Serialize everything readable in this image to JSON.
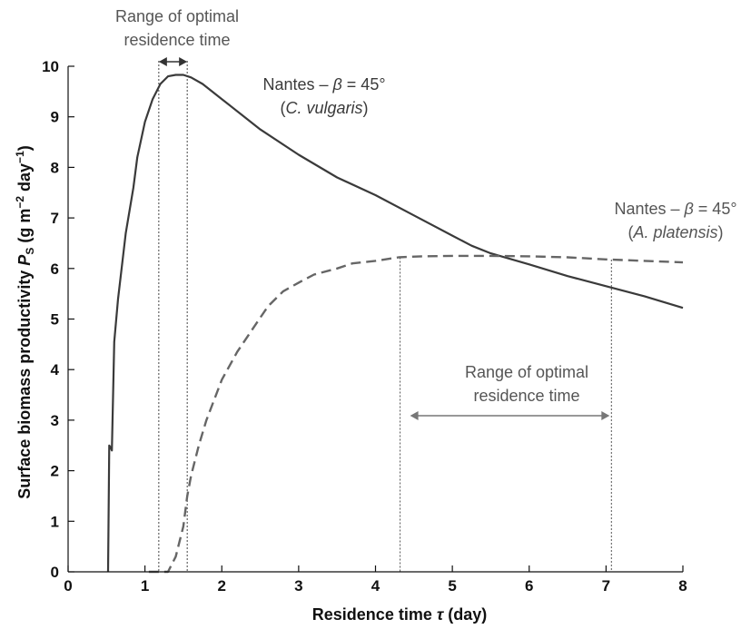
{
  "chart_data": {
    "type": "line",
    "xlabel_text": "Residence time ",
    "xlabel_symbol": "τ",
    "xlabel_unit": " (day)",
    "ylabel_text": "Surface biomass productivity ",
    "ylabel_symbol": "P",
    "ylabel_sub": "S",
    "ylabel_unit_a": " (g m",
    "ylabel_exp1": "−2",
    "ylabel_unit_b": " day",
    "ylabel_exp2": "−1",
    "ylabel_unit_c": ")",
    "xlim": [
      0,
      8
    ],
    "ylim": [
      0,
      10
    ],
    "x_ticks": [
      "0",
      "1",
      "2",
      "3",
      "4",
      "5",
      "6",
      "7",
      "8"
    ],
    "y_ticks": [
      "0",
      "1",
      "2",
      "3",
      "4",
      "5",
      "6",
      "7",
      "8",
      "9",
      "10"
    ],
    "grid": false,
    "series": [
      {
        "label_line1_a": "Nantes – ",
        "label_line1_b": "β",
        "label_line1_c": " = 45°",
        "label_line2_a": "(",
        "label_line2_b": "C. vulgaris",
        "label_line2_c": ")",
        "color": "#3a3a3a",
        "style": "solid",
        "points": [
          [
            0.52,
            0
          ],
          [
            0.535,
            2.5
          ],
          [
            0.555,
            2.45
          ],
          [
            0.57,
            2.4
          ],
          [
            0.6,
            4.55
          ],
          [
            0.65,
            5.4
          ],
          [
            0.75,
            6.7
          ],
          [
            0.85,
            7.6
          ],
          [
            0.9,
            8.2
          ],
          [
            1.0,
            8.9
          ],
          [
            1.1,
            9.35
          ],
          [
            1.2,
            9.65
          ],
          [
            1.3,
            9.8
          ],
          [
            1.4,
            9.83
          ],
          [
            1.5,
            9.83
          ],
          [
            1.6,
            9.78
          ],
          [
            1.75,
            9.65
          ],
          [
            2.0,
            9.35
          ],
          [
            2.5,
            8.75
          ],
          [
            3.0,
            8.25
          ],
          [
            3.5,
            7.8
          ],
          [
            4.0,
            7.45
          ],
          [
            4.5,
            7.05
          ],
          [
            5.0,
            6.65
          ],
          [
            5.25,
            6.45
          ],
          [
            5.5,
            6.3
          ],
          [
            6.0,
            6.08
          ],
          [
            6.5,
            5.85
          ],
          [
            7.0,
            5.65
          ],
          [
            7.5,
            5.45
          ],
          [
            8.0,
            5.22
          ]
        ]
      },
      {
        "label_line1_a": "Nantes – ",
        "label_line1_b": "β",
        "label_line1_c": " = 45°",
        "label_line2_a": "(",
        "label_line2_b": "A. platensis",
        "label_line2_c": ")",
        "color": "#666666",
        "style": "dashed",
        "points": [
          [
            1.05,
            0
          ],
          [
            1.3,
            0
          ],
          [
            1.4,
            0.3
          ],
          [
            1.5,
            0.9
          ],
          [
            1.55,
            1.5
          ],
          [
            1.6,
            1.9
          ],
          [
            1.7,
            2.5
          ],
          [
            1.8,
            3.0
          ],
          [
            2.0,
            3.8
          ],
          [
            2.2,
            4.35
          ],
          [
            2.4,
            4.8
          ],
          [
            2.6,
            5.25
          ],
          [
            2.8,
            5.55
          ],
          [
            3.0,
            5.72
          ],
          [
            3.2,
            5.88
          ],
          [
            3.5,
            6.0
          ],
          [
            3.7,
            6.1
          ],
          [
            4.0,
            6.15
          ],
          [
            4.3,
            6.22
          ],
          [
            4.6,
            6.24
          ],
          [
            5.0,
            6.25
          ],
          [
            5.5,
            6.25
          ],
          [
            6.0,
            6.24
          ],
          [
            6.5,
            6.22
          ],
          [
            7.0,
            6.18
          ],
          [
            7.5,
            6.15
          ],
          [
            8.0,
            6.12
          ]
        ]
      }
    ],
    "annotations": [
      {
        "line1": "Range of optimal",
        "line2": "residence time",
        "x_from": 1.18,
        "x_to": 1.55,
        "drop_lines": true
      },
      {
        "line1": "Range of optimal",
        "line2": "residence time",
        "x_from": 4.32,
        "x_to": 7.07,
        "drop_lines": true
      }
    ]
  }
}
